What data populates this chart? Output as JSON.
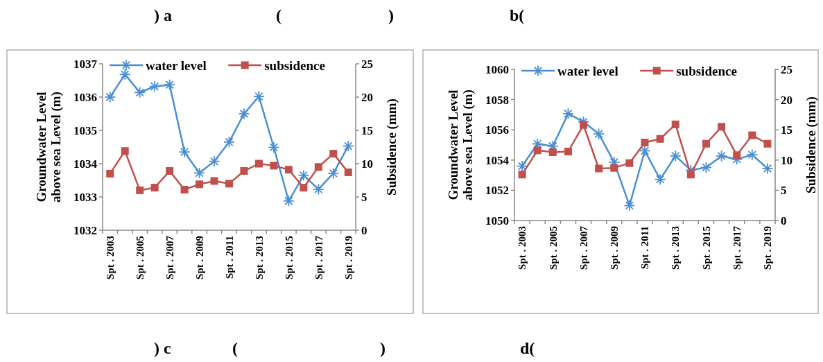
{
  "chart_data": [
    {
      "type": "line",
      "ylabel": "Groundwater Level\nabove sea Level (m)",
      "y2label": "Subsidence (mm)",
      "categories": [
        "Spt . 2003",
        null,
        "Spt . 2005",
        null,
        "Spt . 2007",
        null,
        "Spt . 2009",
        null,
        "Spt . 2011",
        null,
        "Spt . 2013",
        null,
        "Spt . 2015",
        null,
        "Spt . 2017",
        null,
        "Spt . 2019"
      ],
      "series": [
        {
          "name": "water level",
          "color": "#4a8fd4",
          "marker": "cross",
          "values": [
            1036.0,
            1036.68,
            1036.14,
            1036.32,
            1036.37,
            1034.35,
            1033.72,
            1034.07,
            1034.65,
            1035.5,
            1036.02,
            1034.49,
            1032.88,
            1033.65,
            1033.23,
            1033.71,
            1034.53
          ]
        },
        {
          "name": "subsidence",
          "color": "#c0504d",
          "marker": "square",
          "axis": "y2",
          "values": [
            8.5,
            11.9,
            6.0,
            6.4,
            8.9,
            6.1,
            6.9,
            7.4,
            7.0,
            8.9,
            10.0,
            9.7,
            9.1,
            6.4,
            9.5,
            11.5,
            8.7
          ]
        }
      ],
      "ylim": [
        1032,
        1037
      ],
      "yticks": [
        1032,
        1033,
        1034,
        1035,
        1036,
        1037
      ],
      "y2lim": [
        0,
        25
      ],
      "y2ticks": [
        0,
        5,
        10,
        15,
        20,
        25
      ],
      "legend": "top",
      "grid": false,
      "annotations": [
        ") a",
        "(",
        ")",
        "b("
      ]
    },
    {
      "type": "line",
      "ylabel": "Groundwater Level\nabove sea Level (m)",
      "y2label": "Subsidence (mm)",
      "categories": [
        "Spt . 2003",
        null,
        "Spt . 2005",
        null,
        "Spt . 2007",
        null,
        "Spt . 2009",
        null,
        "Spt . 2011",
        null,
        "Spt . 2013",
        null,
        "Spt . 2015",
        null,
        "Spt . 2017",
        null,
        "Spt . 2019"
      ],
      "series": [
        {
          "name": "water level",
          "color": "#4a8fd4",
          "marker": "cross",
          "values": [
            1053.6,
            1055.07,
            1054.92,
            1057.07,
            1056.53,
            1055.73,
            1053.86,
            1050.99,
            1054.61,
            1052.72,
            1054.27,
            1053.33,
            1053.51,
            1054.27,
            1054.05,
            1054.35,
            1053.44
          ]
        },
        {
          "name": "subsidence",
          "color": "#c0504d",
          "marker": "square",
          "axis": "y2",
          "values": [
            7.6,
            11.6,
            11.3,
            11.4,
            15.8,
            8.6,
            8.7,
            9.5,
            12.9,
            13.5,
            15.9,
            7.6,
            12.7,
            15.5,
            10.8,
            14.1,
            12.7
          ]
        }
      ],
      "ylim": [
        1050,
        1060
      ],
      "yticks": [
        1050,
        1052,
        1054,
        1056,
        1058,
        1060
      ],
      "y2lim": [
        0,
        25
      ],
      "y2ticks": [
        0,
        5,
        10,
        15,
        20,
        25
      ],
      "legend": "top",
      "grid": false,
      "annotations": [
        ") c",
        "(",
        ")",
        "d("
      ]
    }
  ]
}
